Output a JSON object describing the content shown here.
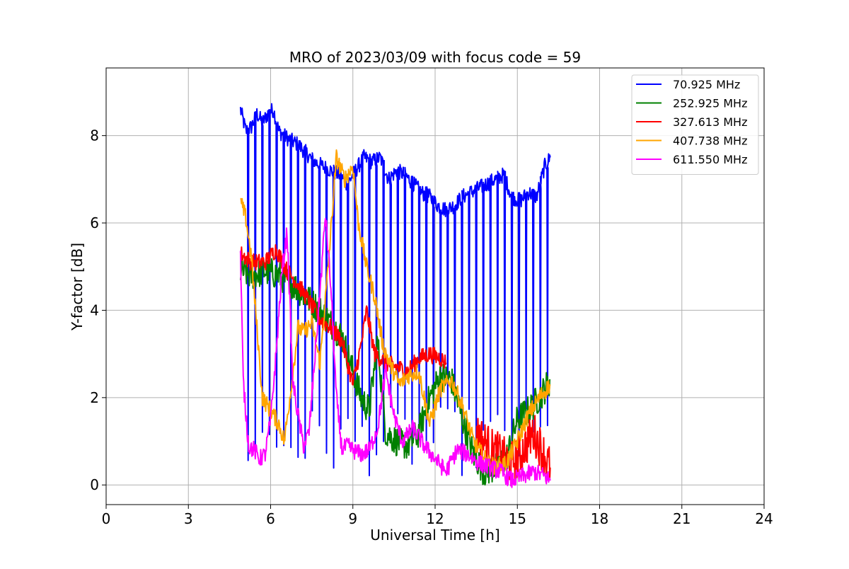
{
  "chart_data": {
    "type": "line",
    "title": "MRO of 2023/03/09 with focus code = 59",
    "xlabel": "Universal Time [h]",
    "ylabel": "Y-factor [dB]",
    "xlim": [
      0,
      24
    ],
    "ylim": [
      -0.45,
      9.55
    ],
    "xticks": [
      0,
      3,
      6,
      9,
      12,
      15,
      18,
      21,
      24
    ],
    "yticks": [
      0,
      2,
      4,
      6,
      8
    ],
    "grid": true,
    "legend_position": "top-right",
    "series": [
      {
        "name": "70.925 MHz",
        "color": "#0000ff",
        "x": [
          4.9,
          5.1,
          5.3,
          5.5,
          5.7,
          5.9,
          6.1,
          6.3,
          6.5,
          6.7,
          7.0,
          7.3,
          7.6,
          7.9,
          8.2,
          8.5,
          8.8,
          9.1,
          9.4,
          9.7,
          10.0,
          10.3,
          10.6,
          10.9,
          11.2,
          11.5,
          11.8,
          12.1,
          12.4,
          12.7,
          13.0,
          13.3,
          13.6,
          13.9,
          14.2,
          14.5,
          14.8,
          15.1,
          15.4,
          15.7,
          16.0,
          16.2
        ],
        "y": [
          8.6,
          8.1,
          8.2,
          8.5,
          8.3,
          8.5,
          8.6,
          8.1,
          8.0,
          7.9,
          7.8,
          7.6,
          7.4,
          7.3,
          7.2,
          7.1,
          6.9,
          7.2,
          7.5,
          7.4,
          7.5,
          7.0,
          7.2,
          7.1,
          6.9,
          6.7,
          6.6,
          6.4,
          6.3,
          6.4,
          6.6,
          6.7,
          6.8,
          6.9,
          7.0,
          7.1,
          6.6,
          6.5,
          6.7,
          6.6,
          7.3,
          7.5
        ],
        "spikes_to": 1.0
      },
      {
        "name": "252.925 MHz",
        "color": "#008000",
        "x": [
          4.9,
          5.3,
          5.8,
          6.3,
          6.8,
          7.3,
          7.8,
          8.2,
          8.6,
          9.0,
          9.3,
          9.6,
          9.9,
          10.2,
          10.6,
          11.0,
          11.4,
          11.8,
          12.2,
          12.6,
          13.0,
          13.4,
          13.8,
          14.2,
          14.6,
          15.0,
          15.4,
          15.8,
          16.2
        ],
        "y": [
          4.9,
          4.8,
          4.9,
          4.8,
          4.6,
          4.3,
          4.0,
          3.7,
          3.4,
          2.6,
          2.0,
          1.7,
          3.3,
          1.2,
          1.0,
          0.9,
          1.2,
          2.0,
          2.5,
          2.4,
          1.5,
          0.7,
          0.3,
          0.4,
          0.6,
          1.5,
          1.7,
          2.0,
          2.4
        ]
      },
      {
        "name": "327.613 MHz",
        "color": "#ff0000",
        "x": [
          4.9,
          5.3,
          5.8,
          6.2,
          6.6,
          7.0,
          7.4,
          7.8,
          8.2,
          8.6,
          9.0,
          9.3,
          9.5,
          9.8,
          10.2,
          10.6,
          11.0,
          11.4,
          11.8,
          12.2,
          12.4
        ],
        "y": [
          5.3,
          5.1,
          5.1,
          5.4,
          4.9,
          4.6,
          4.2,
          3.8,
          3.6,
          3.3,
          2.3,
          3.2,
          4.0,
          3.0,
          2.8,
          2.7,
          2.6,
          2.9,
          3.0,
          2.9,
          2.8
        ],
        "x2": [
          13.5,
          13.8,
          14.1,
          14.4,
          14.7,
          15.0,
          15.3,
          15.6,
          15.9,
          16.2
        ],
        "y2": [
          1.2,
          1.0,
          0.8,
          0.7,
          0.5,
          0.6,
          0.9,
          1.2,
          0.8,
          0.4
        ]
      },
      {
        "name": "407.738 MHz",
        "color": "#ffa500",
        "x": [
          4.9,
          5.1,
          5.3,
          5.5,
          5.7,
          5.9,
          6.1,
          6.3,
          6.5,
          6.8,
          7.0,
          7.2,
          7.5,
          7.8,
          8.1,
          8.4,
          8.7,
          9.0,
          9.2,
          9.5,
          9.8,
          10.1,
          10.4,
          10.7,
          11.0,
          11.4,
          11.8,
          12.2,
          12.6,
          13.0,
          13.4,
          13.8,
          14.2,
          14.6,
          15.0,
          15.4,
          15.8,
          16.2
        ],
        "y": [
          6.5,
          6.1,
          5.2,
          3.6,
          2.0,
          1.8,
          1.6,
          1.4,
          1.0,
          2.5,
          3.6,
          3.5,
          3.7,
          2.8,
          5.0,
          7.5,
          7.0,
          7.3,
          6.0,
          5.0,
          4.3,
          3.2,
          2.7,
          2.3,
          2.5,
          2.6,
          1.4,
          2.2,
          2.4,
          1.8,
          1.0,
          0.6,
          0.4,
          0.5,
          1.0,
          1.6,
          2.0,
          2.3
        ]
      },
      {
        "name": "611.550 MHz",
        "color": "#ff00ff",
        "x": [
          4.9,
          5.0,
          5.1,
          5.2,
          5.4,
          5.6,
          5.8,
          6.0,
          6.2,
          6.4,
          6.6,
          6.7,
          6.8,
          7.0,
          7.2,
          7.4,
          7.6,
          7.8,
          8.0,
          8.2,
          8.4,
          8.6,
          8.8,
          9.0,
          9.3,
          9.6,
          9.9,
          10.2,
          10.5,
          10.8,
          11.2,
          11.6,
          12.0,
          12.4,
          12.8,
          13.2,
          13.6,
          14.0,
          14.4,
          14.8,
          15.2,
          15.6,
          16.0,
          16.2
        ],
        "y": [
          5.3,
          2.4,
          1.6,
          0.9,
          0.8,
          0.6,
          0.7,
          1.5,
          3.0,
          4.8,
          5.8,
          4.2,
          2.4,
          1.6,
          0.9,
          1.2,
          2.8,
          4.4,
          6.2,
          4.5,
          2.0,
          0.8,
          0.9,
          0.8,
          0.7,
          0.8,
          1.3,
          2.6,
          1.6,
          1.0,
          1.3,
          0.9,
          0.6,
          0.3,
          0.8,
          0.7,
          0.5,
          0.4,
          0.3,
          0.1,
          0.2,
          0.3,
          0.2,
          0.1
        ]
      }
    ]
  }
}
